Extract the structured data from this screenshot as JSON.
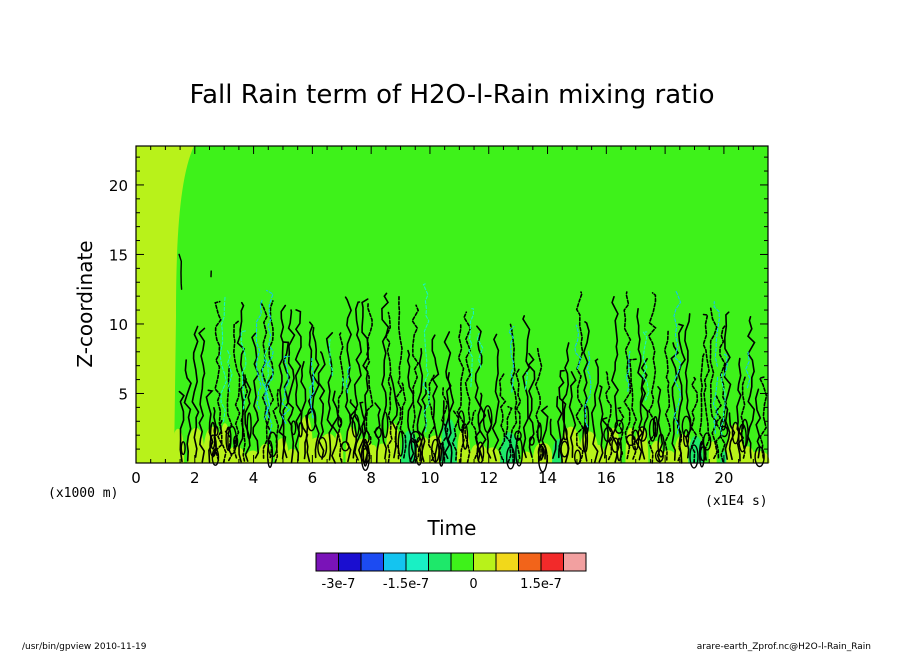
{
  "chart_data": {
    "type": "heatmap",
    "title": "Fall Rain term of H2O-l-Rain mixing ratio",
    "xlabel": "Time",
    "ylabel": "Z-coordinate",
    "x_unit": "(x1E4 s)",
    "y_unit": "(x1000 m)",
    "xlim": [
      0,
      21.5
    ],
    "ylim": [
      0,
      22.8
    ],
    "x_ticks": [
      0,
      2,
      4,
      6,
      8,
      10,
      12,
      14,
      16,
      18,
      20
    ],
    "y_ticks": [
      5,
      10,
      15,
      20
    ],
    "colorbar": {
      "levels": [
        -3e-07,
        -2.5e-07,
        -2e-07,
        -1.5e-07,
        -1e-07,
        -5e-08,
        0,
        5e-08,
        1e-07,
        1.5e-07,
        2e-07
      ],
      "colors": [
        "#7a13b8",
        "#1a0ed0",
        "#1c4bf2",
        "#14c4f0",
        "#19f0c4",
        "#1ee86a",
        "#3ef21a",
        "#b8f21a",
        "#f2d81a",
        "#f2641a",
        "#f22a2a",
        "#f2a0a0"
      ],
      "labels": [
        "-3e-7",
        "-1.5e-7",
        "0",
        "1.5e-7"
      ],
      "label_levels": [
        -3e-07,
        -1.5e-07,
        0,
        1.5e-07
      ]
    },
    "background_value_range": [
      -5e-08,
      0
    ],
    "grid": false
  },
  "footer": {
    "left": "/usr/bin/gpview   2010-11-19",
    "right": "arare-earth_Zprof.nc@H2O-l-Rain_Rain"
  }
}
